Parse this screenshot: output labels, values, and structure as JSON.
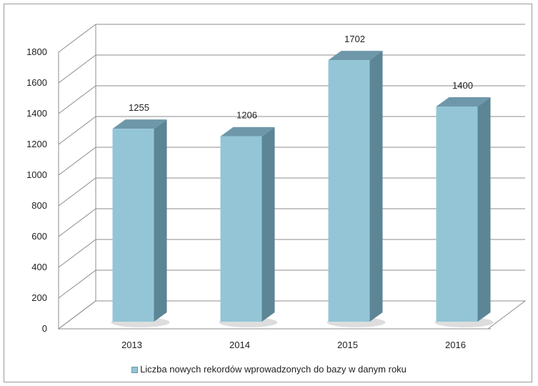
{
  "chart_data": {
    "type": "bar",
    "categories": [
      "2013",
      "2014",
      "2015",
      "2016"
    ],
    "series": [
      {
        "name": "Liczba nowych rekordów wprowadzonych do bazy w danym roku",
        "values": [
          1255,
          1206,
          1702,
          1400
        ]
      }
    ],
    "data_labels": [
      "1255",
      "1206",
      "1702",
      "1400"
    ],
    "y_ticks": [
      "0",
      "200",
      "400",
      "600",
      "800",
      "1000",
      "1200",
      "1400",
      "1600",
      "1800"
    ],
    "ylim": [
      0,
      1800
    ],
    "grid": true,
    "legend_position": "bottom",
    "style": "3d-column",
    "colors": {
      "bar_front": "#93c5d6",
      "bar_side": "#5c8595",
      "bar_top": "#6e98aa"
    }
  }
}
